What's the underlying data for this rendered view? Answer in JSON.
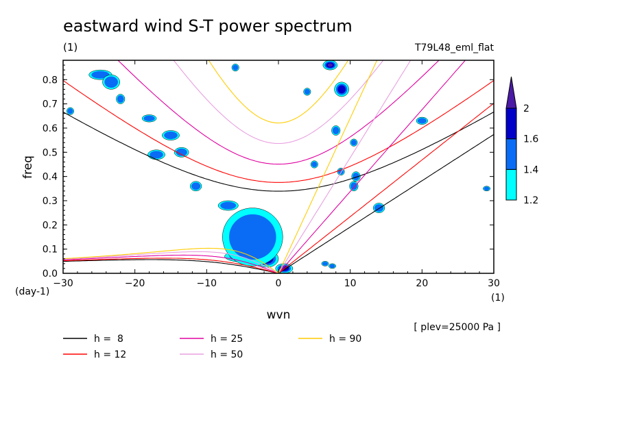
{
  "chart_data": {
    "type": "heatmap",
    "title": "eastward wind S-T power spectrum",
    "units_label": "(1)",
    "experiment": "T79L48_eml_flat",
    "xlabel": "wvn",
    "ylabel": "freq",
    "x_unit": "(1)",
    "y_unit": "(day-1)",
    "xlim": [
      -30,
      30
    ],
    "ylim": [
      0,
      0.88
    ],
    "x_ticks": [
      -30,
      -20,
      -10,
      0,
      10,
      20,
      30
    ],
    "x_tick_labels": [
      "-30",
      "-20",
      "-10",
      "0",
      "10",
      "20",
      "30"
    ],
    "y_ticks": [
      0,
      0.1,
      0.2,
      0.3,
      0.4,
      0.5,
      0.6,
      0.7,
      0.8
    ],
    "y_tick_labels": [
      "0.0",
      "0.1",
      "0.2",
      "0.3",
      "0.4",
      "0.5",
      "0.6",
      "0.7",
      "0.8"
    ],
    "plev_note": "[ plev=25000 Pa ]",
    "colorbar": {
      "levels": [
        1.2,
        1.4,
        1.6,
        2
      ],
      "level_labels": [
        "1.2",
        "1.4",
        "1.6",
        "2"
      ],
      "colors": [
        "#00ffff",
        "#0a6cf5",
        "#0000c8",
        "#4b1aa6"
      ]
    },
    "contour_blobs": [
      {
        "x": -4.2,
        "y": 0.21,
        "rx": 2.2,
        "ry": 0.05,
        "level": 3
      },
      {
        "x": -3.5,
        "y": 0.13,
        "rx": 3.0,
        "ry": 0.05,
        "level": 3
      },
      {
        "x": -4.5,
        "y": 0.07,
        "rx": 3.0,
        "ry": 0.025,
        "level": 3
      },
      {
        "x": -1.6,
        "y": 0.06,
        "rx": 1.6,
        "ry": 0.035,
        "level": 3
      },
      {
        "x": -3.6,
        "y": 0.15,
        "rx": 4.2,
        "ry": 0.12,
        "level": 1
      },
      {
        "x": 0.8,
        "y": 0.02,
        "rx": 1.2,
        "ry": 0.02,
        "level": 2
      },
      {
        "x": 7.2,
        "y": 0.86,
        "rx": 1.0,
        "ry": 0.02,
        "level": 3
      },
      {
        "x": 8.8,
        "y": 0.76,
        "rx": 1.0,
        "ry": 0.03,
        "level": 2
      },
      {
        "x": -24.8,
        "y": 0.82,
        "rx": 1.6,
        "ry": 0.02,
        "level": 1
      },
      {
        "x": -23.3,
        "y": 0.79,
        "rx": 1.2,
        "ry": 0.03,
        "level": 1
      },
      {
        "x": -22.0,
        "y": 0.72,
        "rx": 0.6,
        "ry": 0.02,
        "level": 1
      },
      {
        "x": -18.0,
        "y": 0.64,
        "rx": 1.0,
        "ry": 0.015,
        "level": 1
      },
      {
        "x": -15.0,
        "y": 0.57,
        "rx": 1.2,
        "ry": 0.02,
        "level": 1
      },
      {
        "x": -17.0,
        "y": 0.49,
        "rx": 1.2,
        "ry": 0.02,
        "level": 1
      },
      {
        "x": -13.5,
        "y": 0.5,
        "rx": 1.0,
        "ry": 0.02,
        "level": 1
      },
      {
        "x": -11.5,
        "y": 0.36,
        "rx": 0.8,
        "ry": 0.02,
        "level": 1
      },
      {
        "x": -7.0,
        "y": 0.28,
        "rx": 1.4,
        "ry": 0.02,
        "level": 1
      },
      {
        "x": 5.0,
        "y": 0.45,
        "rx": 0.5,
        "ry": 0.015,
        "level": 1
      },
      {
        "x": 8.7,
        "y": 0.42,
        "rx": 0.5,
        "ry": 0.015,
        "level": 1
      },
      {
        "x": 10.8,
        "y": 0.4,
        "rx": 0.6,
        "ry": 0.02,
        "level": 1
      },
      {
        "x": 10.5,
        "y": 0.36,
        "rx": 0.6,
        "ry": 0.02,
        "level": 1
      },
      {
        "x": 20.0,
        "y": 0.63,
        "rx": 0.8,
        "ry": 0.015,
        "level": 1
      },
      {
        "x": 14.0,
        "y": 0.27,
        "rx": 0.8,
        "ry": 0.02,
        "level": 1
      },
      {
        "x": 8.0,
        "y": 0.59,
        "rx": 0.6,
        "ry": 0.02,
        "level": 1
      },
      {
        "x": 10.5,
        "y": 0.54,
        "rx": 0.5,
        "ry": 0.015,
        "level": 1
      },
      {
        "x": 4.0,
        "y": 0.75,
        "rx": 0.5,
        "ry": 0.015,
        "level": 1
      },
      {
        "x": 6.5,
        "y": 0.04,
        "rx": 0.5,
        "ry": 0.01,
        "level": 1
      },
      {
        "x": 7.5,
        "y": 0.03,
        "rx": 0.5,
        "ry": 0.01,
        "level": 1
      },
      {
        "x": 29.0,
        "y": 0.35,
        "rx": 0.5,
        "ry": 0.01,
        "level": 1
      },
      {
        "x": -6.0,
        "y": 0.85,
        "rx": 0.5,
        "ry": 0.015,
        "level": 1
      },
      {
        "x": -29.0,
        "y": 0.67,
        "rx": 0.5,
        "ry": 0.015,
        "level": 1
      }
    ],
    "series": [
      {
        "name": "h =  8",
        "h": 8,
        "color": "#000000"
      },
      {
        "name": "h = 12",
        "h": 12,
        "color": "#ff0000"
      },
      {
        "name": "h = 25",
        "h": 25,
        "color": "#e000a0"
      },
      {
        "name": "h = 50",
        "h": 50,
        "color": "#e8a0e0"
      },
      {
        "name": "h = 90",
        "h": 90,
        "color": "#ffcc00"
      }
    ],
    "legend_placement": "bottom-left"
  }
}
